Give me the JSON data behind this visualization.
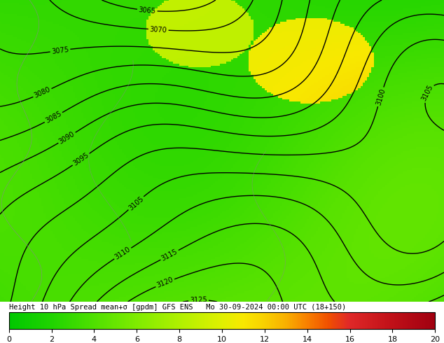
{
  "title": "Height 10 hPa Spread mean+σ [gpdm] GFS ENS   Mo 30-09-2024 00:00 UTC (18+150)",
  "colorbar_ticks": [
    0,
    2,
    4,
    6,
    8,
    10,
    12,
    14,
    16,
    18,
    20
  ],
  "vmin": 0,
  "vmax": 20,
  "contour_levels": [
    3065,
    3070,
    3075,
    3080,
    3085,
    3090,
    3095,
    3100,
    3105,
    3110,
    3115,
    3120,
    3125
  ],
  "contour_color": "black",
  "contour_linewidth": 1.0,
  "bg_color": "#3aba1a",
  "colors": [
    "#00c800",
    "#18d200",
    "#30dc00",
    "#50e600",
    "#70ee00",
    "#9cf000",
    "#c8f000",
    "#f0e800",
    "#f8c000",
    "#f09000",
    "#e86030",
    "#d83020",
    "#c00010"
  ],
  "colormap_colors": [
    "#00be00",
    "#10cc00",
    "#28d600",
    "#44e000",
    "#66e800",
    "#8ef000",
    "#b8f000",
    "#e4ec00",
    "#f8cc00",
    "#f8a000",
    "#f07000",
    "#e04040",
    "#c81020",
    "#aa0010"
  ]
}
